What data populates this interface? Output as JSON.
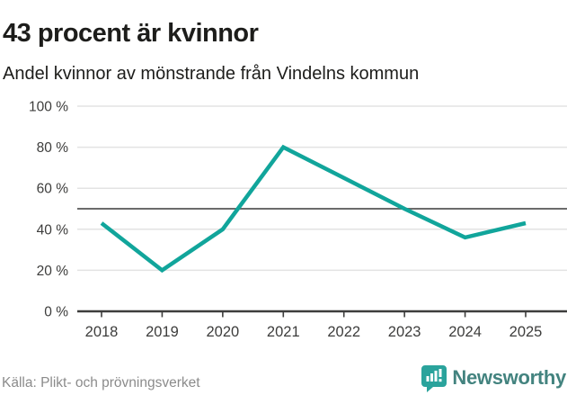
{
  "header": {
    "title": "43 procent är kvinnor",
    "subtitle": "Andel kvinnor av mönstrande från Vindelns kommun"
  },
  "chart_data": {
    "type": "line",
    "title": "43 procent är kvinnor",
    "subtitle": "Andel kvinnor av mönstrande från Vindelns kommun",
    "categories": [
      "2018",
      "2019",
      "2020",
      "2021",
      "2022",
      "2023",
      "2024",
      "2025"
    ],
    "series": [
      {
        "name": "Andel kvinnor",
        "values": [
          43,
          20,
          40,
          80,
          65,
          50,
          36,
          43
        ]
      }
    ],
    "unit": "%",
    "ylim": [
      0,
      100
    ],
    "yticks": [
      {
        "value": 0,
        "label": "0 %"
      },
      {
        "value": 20,
        "label": "20 %"
      },
      {
        "value": 40,
        "label": "40 %"
      },
      {
        "value": 60,
        "label": "60 %"
      },
      {
        "value": 80,
        "label": "80 %"
      },
      {
        "value": 100,
        "label": "100 %"
      }
    ],
    "reference_line": {
      "value": 50
    },
    "grid": true,
    "legend": "none",
    "colors": {
      "line": "#11a59b",
      "grid": "#e3e3e3",
      "reference": "#6b6b6b",
      "axis": "#3d3d3c",
      "tick_label": "#3d3d3c"
    }
  },
  "footer": {
    "source": "Källa: Plikt- och prövningsverket",
    "brand": "Newsworthy"
  },
  "icons": {
    "logo": "newsworthy-logo-icon"
  }
}
